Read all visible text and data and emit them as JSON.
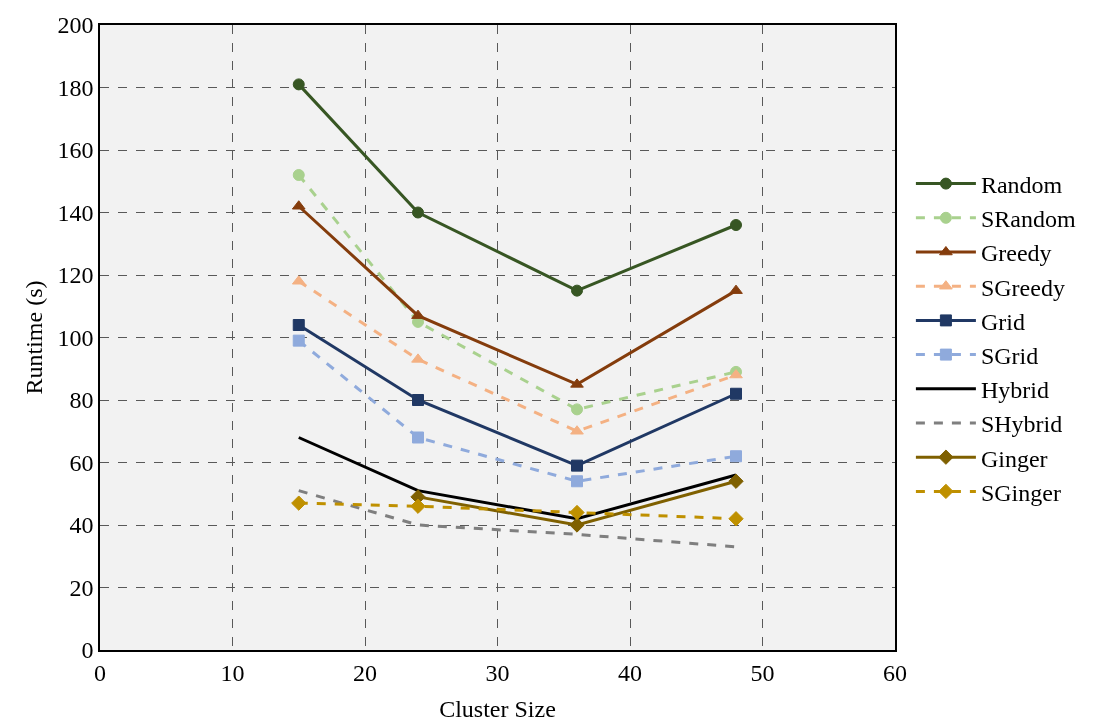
{
  "chart_data": {
    "type": "line",
    "xlabel": "Cluster Size",
    "ylabel": "Runtime (s)",
    "x": [
      15,
      24,
      36,
      48
    ],
    "xlim": [
      0,
      60
    ],
    "xticks": [
      0,
      10,
      20,
      30,
      40,
      50,
      60
    ],
    "ylim": [
      0,
      200
    ],
    "yticks": [
      0,
      20,
      40,
      60,
      80,
      100,
      120,
      140,
      160,
      180,
      200
    ],
    "grid": true,
    "legend": "right",
    "series": [
      {
        "name": "Random",
        "color": "#375623",
        "values": [
          181,
          140,
          115,
          136
        ],
        "marker": "circle",
        "line_style": "solid"
      },
      {
        "name": "SRandom",
        "color": "#a9d18e",
        "values": [
          152,
          105,
          77,
          89
        ],
        "marker": "circle",
        "line_style": "dashed"
      },
      {
        "name": "Greedy",
        "color": "#843c0c",
        "values": [
          142,
          107,
          85,
          115
        ],
        "marker": "triangle",
        "line_style": "solid"
      },
      {
        "name": "SGreedy",
        "color": "#f4b183",
        "values": [
          118,
          93,
          70,
          88
        ],
        "marker": "triangle",
        "line_style": "dashed"
      },
      {
        "name": "Grid",
        "color": "#203864",
        "values": [
          104,
          80,
          59,
          82
        ],
        "marker": "square",
        "line_style": "solid"
      },
      {
        "name": "SGrid",
        "color": "#8faadc",
        "values": [
          99,
          68,
          54,
          62
        ],
        "marker": "square",
        "line_style": "dashed"
      },
      {
        "name": "Hybrid",
        "color": "#000000",
        "values": [
          68,
          51,
          42,
          56
        ],
        "marker": "none",
        "line_style": "solid"
      },
      {
        "name": "SHybrid",
        "color": "#7f7f7f",
        "values": [
          51,
          40,
          37,
          33
        ],
        "marker": "none",
        "line_style": "dashed"
      },
      {
        "name": "Ginger",
        "color": "#7f6000",
        "values": [
          null,
          49,
          40,
          54
        ],
        "marker": "diamond",
        "line_style": "solid"
      },
      {
        "name": "SGinger",
        "color": "#bf9000",
        "values": [
          47,
          46,
          44,
          42
        ],
        "marker": "diamond",
        "line_style": "dashed"
      }
    ]
  }
}
